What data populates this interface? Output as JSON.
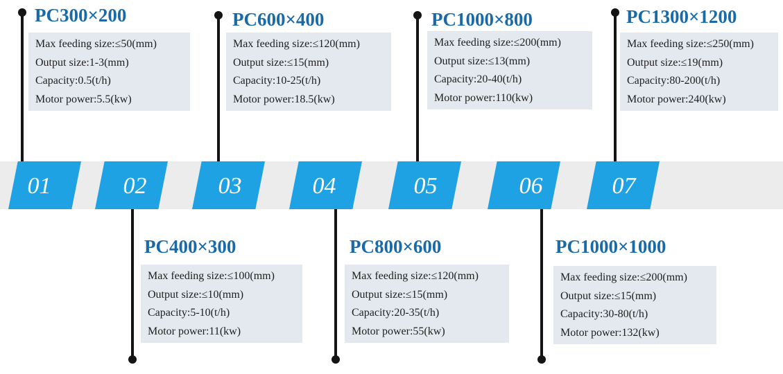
{
  "models": [
    {
      "num": "01",
      "title": "PC300×200",
      "specs": [
        "Max feeding size:≤50(mm)",
        "Output size:1-3(mm)",
        "Capacity:0.5(t/h)",
        "Motor power:5.5(kw)"
      ]
    },
    {
      "num": "02",
      "title": "PC400×300",
      "specs": [
        "Max feeding size:≤100(mm)",
        "Output size:≤10(mm)",
        "Capacity:5-10(t/h)",
        "Motor power:11(kw)"
      ]
    },
    {
      "num": "03",
      "title": "PC600×400",
      "specs": [
        "Max feeding size:≤120(mm)",
        "Output size:≤15(mm)",
        "Capacity:10-25(t/h)",
        "Motor power:18.5(kw)"
      ]
    },
    {
      "num": "04",
      "title": "PC800×600",
      "specs": [
        "Max feeding size:≤120(mm)",
        "Output size:≤15(mm)",
        "Capacity:20-35(t/h)",
        "Motor power:55(kw)"
      ]
    },
    {
      "num": "05",
      "title": "PC1000×800",
      "specs": [
        "Max feeding size:≤200(mm)",
        "Output size:≤13(mm)",
        "Capacity:20-40(t/h)",
        "Motor power:110(kw)"
      ]
    },
    {
      "num": "06",
      "title": "PC1000×1000",
      "specs": [
        "Max feeding size:≤200(mm)",
        "Output size:≤15(mm)",
        "Capacity:30-80(t/h)",
        "Motor power:132(kw)"
      ]
    },
    {
      "num": "07",
      "title": "PC1300×1200",
      "specs": [
        "Max feeding size:≤250(mm)",
        "Output size:≤19(mm)",
        "Capacity:80-200(t/h)",
        "Motor power:240(kw)"
      ]
    }
  ],
  "colors": {
    "badge": "#1fa2e3",
    "title": "#1a6aa8",
    "card": "#e3e9ef",
    "band": "#ececec",
    "stem": "#141414"
  }
}
